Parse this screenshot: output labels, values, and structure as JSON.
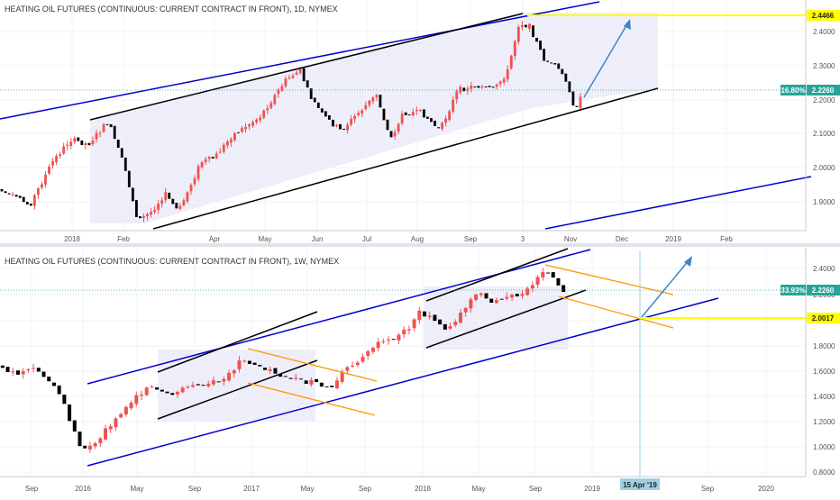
{
  "chart_data": [
    {
      "type": "candlestick",
      "title": "HEATING OIL FUTURES (CONTINUOUS: CURRENT CONTRACT IN FRONT), 1D, NYMEX",
      "x_labels": [
        "2018",
        "Feb",
        "Apr",
        "May",
        "Jun",
        "Jul",
        "Aug",
        "Sep",
        "3",
        "Nov",
        "Dec",
        "2019",
        "Feb"
      ],
      "y_ticks": [
        "2.4000",
        "2.3000",
        "2.2000",
        "2.1000",
        "2.0000",
        "1.9000"
      ],
      "ylim": [
        1.82,
        2.49
      ],
      "current_price": "2.2260",
      "current_change": "16.80%",
      "target_price": "2.4466",
      "colors": {
        "up": "#26a69a",
        "down": "#ef5350",
        "channel": "#0000cc",
        "trend": "#000000",
        "target": "#ffff00",
        "projection": "#3d85c6",
        "fill": "#eeeefa"
      }
    },
    {
      "type": "candlestick",
      "title": "HEATING OIL FUTURES (CONTINUOUS: CURRENT CONTRACT IN FRONT), 1W, NYMEX",
      "x_labels": [
        "Sep",
        "2016",
        "May",
        "Sep",
        "2017",
        "May",
        "Sep",
        "2018",
        "May",
        "Sep",
        "2019",
        "Sep",
        "2020"
      ],
      "y_ticks": [
        "2.4000",
        "2.2000",
        "2.0000",
        "1.8000",
        "1.6000",
        "1.4000",
        "1.2000",
        "1.0000",
        "0.8000"
      ],
      "ylim": [
        0.75,
        2.55
      ],
      "current_price": "2.2260",
      "current_change": "33.93%",
      "target_price": "2.0017",
      "date_marker": "15 Apr '19",
      "colors": {
        "up": "#26a69a",
        "down": "#ef5350",
        "channel": "#0000cc",
        "trend": "#000000",
        "target": "#ffff00",
        "orange": "#ff9900",
        "projection": "#3d85c6",
        "fill": "#eeeefa"
      }
    }
  ]
}
